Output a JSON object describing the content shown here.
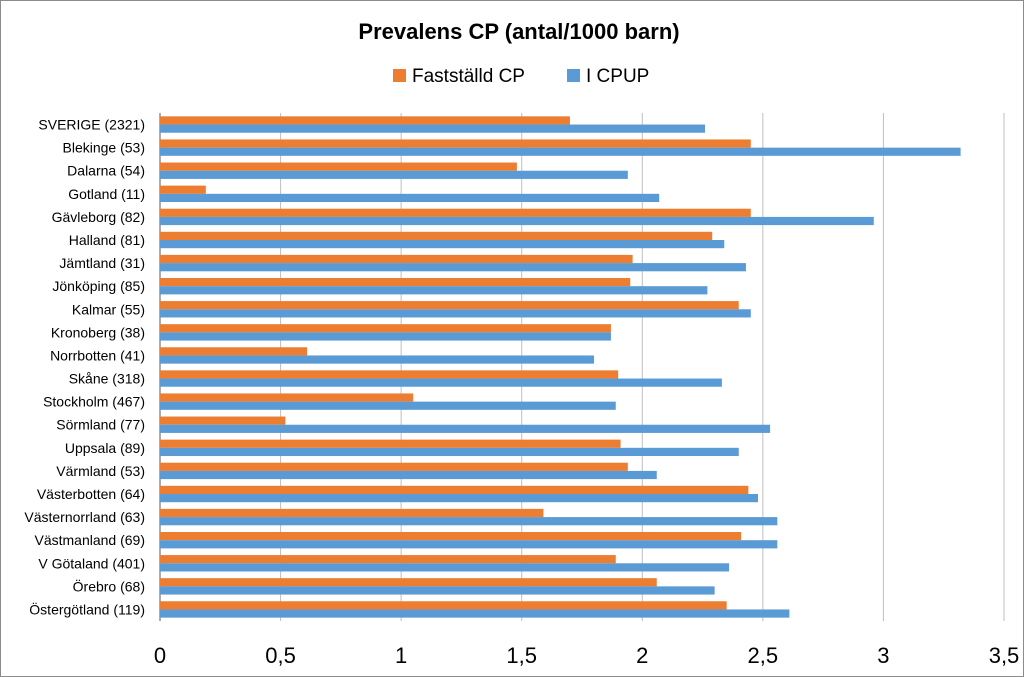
{
  "chart_data": {
    "type": "bar",
    "orientation": "horizontal",
    "title": "Prevalens CP (antal/1000 barn)",
    "xlabel": "",
    "ylabel": "",
    "xlim": [
      0,
      3.5
    ],
    "x_ticks": [
      "0",
      "0,5",
      "1",
      "1,5",
      "2",
      "2,5",
      "3",
      "3,5"
    ],
    "grid": "vertical major gridlines",
    "legend_position": "top",
    "categories": [
      "SVERIGE (2321)",
      "Blekinge (53)",
      "Dalarna (54)",
      "Gotland (11)",
      "Gävleborg (82)",
      "Halland (81)",
      "Jämtland (31)",
      "Jönköping (85)",
      "Kalmar (55)",
      "Kronoberg (38)",
      "Norrbotten (41)",
      "Skåne (318)",
      "Stockholm (467)",
      "Sörmland (77)",
      "Uppsala (89)",
      "Värmland (53)",
      "Västerbotten (64)",
      "Västernorrland (63)",
      "Västmanland (69)",
      "V Götaland (401)",
      "Örebro (68)",
      "Östergötland (119)"
    ],
    "series": [
      {
        "name": "Fastställd CP",
        "color": "#ED7D31",
        "values": [
          1.7,
          2.45,
          1.48,
          0.19,
          2.45,
          2.29,
          1.96,
          1.95,
          2.4,
          1.87,
          0.61,
          1.9,
          1.05,
          0.52,
          1.91,
          1.94,
          2.44,
          1.59,
          2.41,
          1.89,
          2.06,
          2.35
        ]
      },
      {
        "name": "I CPUP",
        "color": "#5B9BD5",
        "values": [
          2.26,
          3.32,
          1.94,
          2.07,
          2.96,
          2.34,
          2.43,
          2.27,
          2.45,
          1.87,
          1.8,
          2.33,
          1.89,
          2.53,
          2.4,
          2.06,
          2.48,
          2.56,
          2.56,
          2.36,
          2.3,
          2.61
        ]
      }
    ]
  }
}
